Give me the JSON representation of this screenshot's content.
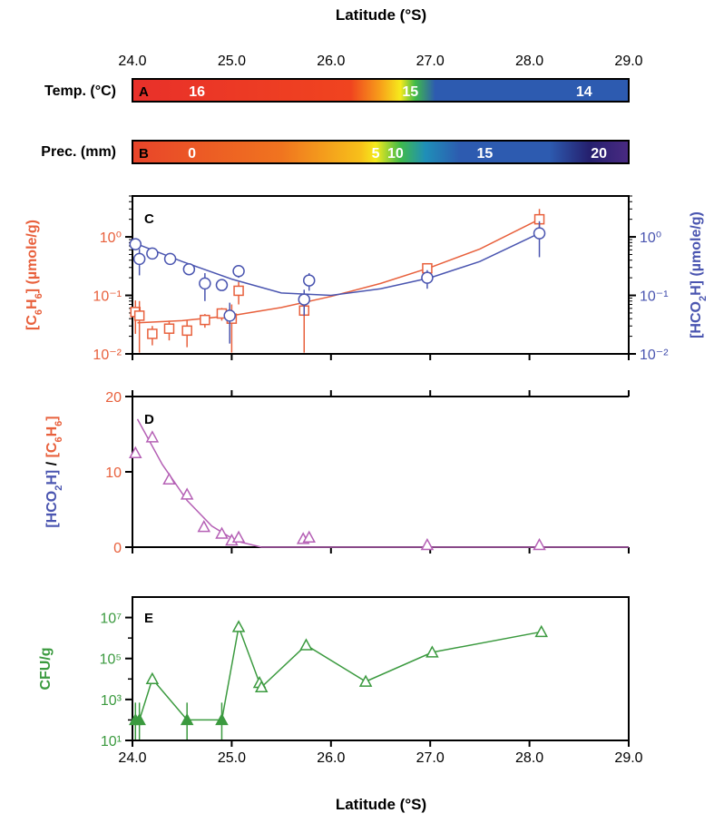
{
  "figure": {
    "xlabel_top": "Latitude (°S)",
    "xlabel_bottom": "Latitude (°S)",
    "x_ticks": [
      "24.0",
      "25.0",
      "26.0",
      "27.0",
      "28.0",
      "29.0"
    ],
    "xlim": [
      24.0,
      29.0
    ]
  },
  "chart_data": [
    {
      "panel": "A",
      "type": "heatmap",
      "ylabel": "Temp. (°C)",
      "gradient": [
        {
          "lat": 24.0,
          "color": "#e8302a"
        },
        {
          "lat": 26.2,
          "color": "#f0441f"
        },
        {
          "lat": 26.5,
          "color": "#f7a01a"
        },
        {
          "lat": 26.7,
          "color": "#f6ea1c"
        },
        {
          "lat": 26.85,
          "color": "#3fba4a"
        },
        {
          "lat": 27.05,
          "color": "#2d5bb0"
        },
        {
          "lat": 29.0,
          "color": "#2d5bb0"
        }
      ],
      "labels": [
        {
          "lat": 24.65,
          "text": "16"
        },
        {
          "lat": 26.8,
          "text": "15"
        },
        {
          "lat": 28.55,
          "text": "14"
        }
      ]
    },
    {
      "panel": "B",
      "type": "heatmap",
      "ylabel": "Prec. (mm)",
      "gradient": [
        {
          "lat": 24.0,
          "color": "#e8442a"
        },
        {
          "lat": 25.5,
          "color": "#f0741f"
        },
        {
          "lat": 26.3,
          "color": "#f7c01a"
        },
        {
          "lat": 26.45,
          "color": "#f6ea1c"
        },
        {
          "lat": 26.7,
          "color": "#3fba4a"
        },
        {
          "lat": 26.95,
          "color": "#1f8fb8"
        },
        {
          "lat": 27.3,
          "color": "#2d5bb0"
        },
        {
          "lat": 28.2,
          "color": "#2d5bb0"
        },
        {
          "lat": 28.6,
          "color": "#25206e"
        },
        {
          "lat": 29.0,
          "color": "#4a2a82"
        }
      ],
      "labels": [
        {
          "lat": 24.6,
          "text": "0"
        },
        {
          "lat": 26.45,
          "text": "5"
        },
        {
          "lat": 26.65,
          "text": "10"
        },
        {
          "lat": 27.55,
          "text": "15"
        },
        {
          "lat": 28.7,
          "text": "20"
        }
      ]
    },
    {
      "panel": "C",
      "type": "scatter",
      "ylabel_left": "[C6H6] (µmole/g)",
      "ylabel_right": "[HCO2H] (µmole/g)",
      "yscale": "log",
      "ylim": [
        0.01,
        5
      ],
      "y_ticks": [
        "10⁻²",
        "10⁻¹",
        "10⁰"
      ],
      "series": [
        {
          "name": "[C6H6]",
          "color": "#e8603c",
          "marker": "square",
          "x": [
            24.03,
            24.07,
            24.2,
            24.37,
            24.55,
            24.73,
            24.9,
            25.0,
            25.07,
            25.73,
            26.97,
            28.1
          ],
          "y": [
            0.052,
            0.045,
            0.022,
            0.027,
            0.025,
            0.038,
            0.049,
            0.04,
            0.12,
            0.055,
            0.29,
            2.0
          ],
          "yerr": [
            0.03,
            0.035,
            0.008,
            0.01,
            0.012,
            0.01,
            0.012,
            0.03,
            0.05,
            0.06,
            0.06,
            1.0
          ],
          "fit": {
            "x": [
              24.05,
              24.5,
              25.0,
              25.5,
              26.0,
              26.5,
              27.0,
              27.5,
              28.1
            ],
            "y": [
              0.034,
              0.037,
              0.045,
              0.062,
              0.096,
              0.16,
              0.3,
              0.62,
              2.0
            ]
          }
        },
        {
          "name": "[HCO2H]",
          "color": "#4a55b0",
          "marker": "circle",
          "x": [
            24.03,
            24.07,
            24.2,
            24.38,
            24.57,
            24.73,
            24.9,
            24.98,
            25.07,
            25.73,
            25.78,
            26.97,
            28.1
          ],
          "y": [
            0.75,
            0.42,
            0.52,
            0.42,
            0.28,
            0.16,
            0.15,
            0.045,
            0.26,
            0.085,
            0.18,
            0.2,
            1.15
          ],
          "yerr": [
            0.15,
            0.2,
            0.08,
            0.08,
            0.05,
            0.08,
            0.03,
            0.03,
            0.06,
            0.04,
            0.06,
            0.07,
            0.7
          ],
          "fit": {
            "x": [
              24.05,
              24.5,
              25.0,
              25.5,
              26.0,
              26.5,
              27.0,
              27.5,
              28.1
            ],
            "y": [
              0.75,
              0.38,
              0.19,
              0.11,
              0.1,
              0.13,
              0.2,
              0.38,
              1.15
            ]
          }
        }
      ]
    },
    {
      "panel": "D",
      "type": "scatter",
      "ylabel": "[HCO2H] / [C6H6]",
      "ylim": [
        0,
        20
      ],
      "y_ticks": [
        "0",
        "10",
        "20"
      ],
      "series": [
        {
          "name": "ratio",
          "color": "#b560b5",
          "marker": "triangle",
          "x": [
            24.03,
            24.2,
            24.37,
            24.55,
            24.72,
            24.9,
            25.0,
            25.07,
            25.72,
            25.78,
            26.97,
            28.1
          ],
          "y": [
            12.5,
            14.6,
            9.0,
            7.0,
            2.7,
            1.8,
            0.9,
            1.3,
            1.1,
            1.3,
            0.3,
            0.3
          ],
          "fit": {
            "x": [
              24.05,
              24.3,
              24.55,
              24.8,
              25.05,
              25.3,
              29.0
            ],
            "y": [
              17.0,
              11.0,
              6.2,
              2.8,
              0.8,
              0.0,
              0.0
            ]
          }
        }
      ]
    },
    {
      "panel": "E",
      "type": "line",
      "ylabel": "CFU/g",
      "yscale": "log",
      "ylim": [
        10,
        100000000
      ],
      "y_ticks": [
        "10¹",
        "10³",
        "10⁵",
        "10⁷"
      ],
      "series": [
        {
          "name": "CFU",
          "color": "#3b9a3f",
          "marker": "triangle",
          "x": [
            24.03,
            24.07,
            24.2,
            24.55,
            24.9,
            25.07,
            25.28,
            25.3,
            25.75,
            26.35,
            27.02,
            28.12
          ],
          "y": [
            100,
            100,
            10000,
            100,
            100,
            3500000,
            6500,
            4000,
            450000,
            7500,
            200000,
            2000000
          ],
          "filled": [
            true,
            true,
            false,
            true,
            true,
            false,
            false,
            false,
            false,
            false,
            false,
            false
          ],
          "yerr": [
            120,
            120,
            0,
            120,
            120,
            0,
            0,
            0,
            0,
            0,
            0,
            0
          ]
        }
      ]
    }
  ]
}
